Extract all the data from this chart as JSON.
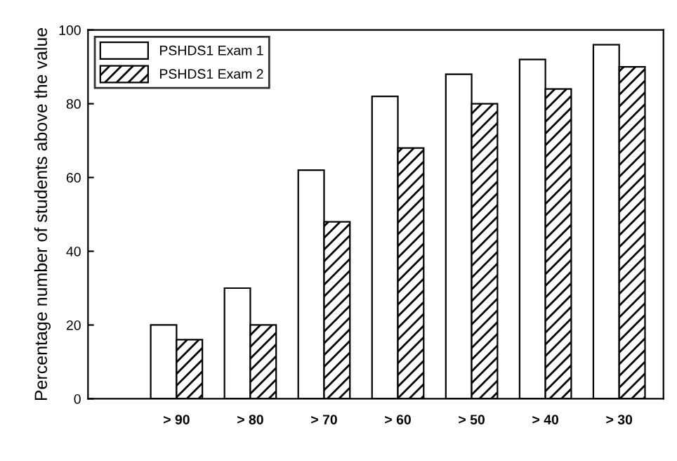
{
  "chart_data": {
    "type": "bar",
    "ylabel": "Percentage number of students above the value",
    "categories": [
      "> 90",
      "> 80",
      "> 70",
      "> 60",
      "> 50",
      "> 40",
      "> 30"
    ],
    "series": [
      {
        "name": "PSHDS1 Exam 1",
        "color": "#ffffff",
        "values": [
          20,
          30,
          62,
          82,
          88,
          92,
          96
        ]
      },
      {
        "name": "PSHDS1 Exam 2",
        "color": "#000000",
        "values": [
          16,
          20,
          48,
          68,
          80,
          84,
          90
        ]
      }
    ],
    "ylim": [
      0,
      100
    ],
    "yticks": [
      0,
      20,
      40,
      60,
      80,
      100
    ],
    "grid": false,
    "legend": "top left"
  }
}
